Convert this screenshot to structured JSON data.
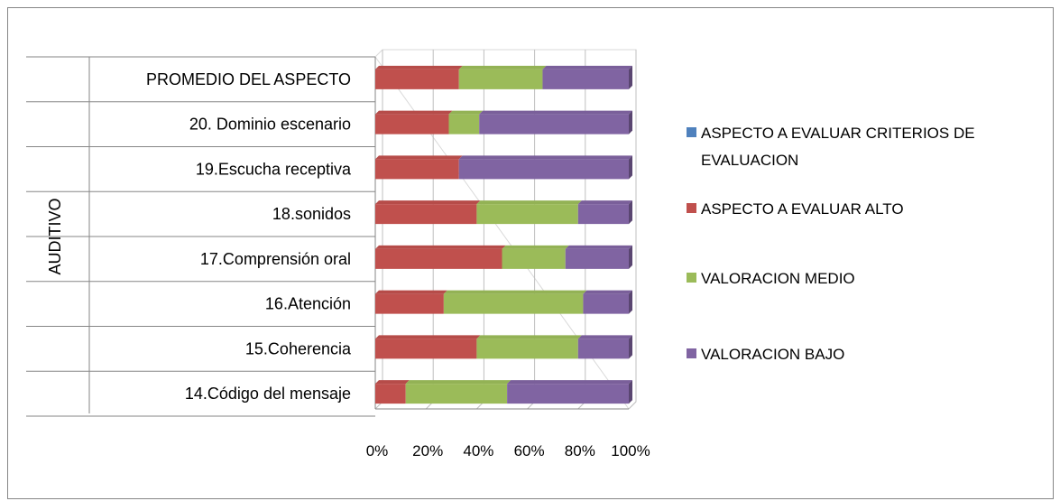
{
  "chart_data": {
    "type": "bar",
    "orientation": "horizontal",
    "stacked": "percent",
    "group_label": "AUDITIVO",
    "categories": [
      "PROMEDIO DEL ASPECTO",
      "20. Dominio escenario",
      "19.Escucha receptiva",
      "18.sonidos",
      "17.Comprensión oral",
      "16.Atención",
      "15.Coherencia",
      "14.Código del mensaje"
    ],
    "series": [
      {
        "name": "ASPECTO A EVALUAR CRITERIOS DE EVALUACION",
        "color": "#4F81BD",
        "values": [
          0,
          0,
          0,
          0,
          0,
          0,
          0,
          0
        ]
      },
      {
        "name": "ASPECTO A EVALUAR ALTO",
        "color": "#C0504D",
        "values": [
          33,
          29,
          33,
          40,
          50,
          27,
          40,
          12
        ]
      },
      {
        "name": "VALORACION MEDIO",
        "color": "#9BBB59",
        "values": [
          33,
          12,
          0,
          40,
          25,
          55,
          40,
          40
        ]
      },
      {
        "name": "VALORACION BAJO",
        "color": "#8064A2",
        "values": [
          34,
          59,
          67,
          20,
          25,
          18,
          20,
          48
        ]
      }
    ],
    "x_ticks": [
      "0%",
      "20%",
      "40%",
      "60%",
      "80%",
      "100%"
    ],
    "xlim": [
      0,
      100
    ],
    "grid": true,
    "legend_position": "right"
  }
}
